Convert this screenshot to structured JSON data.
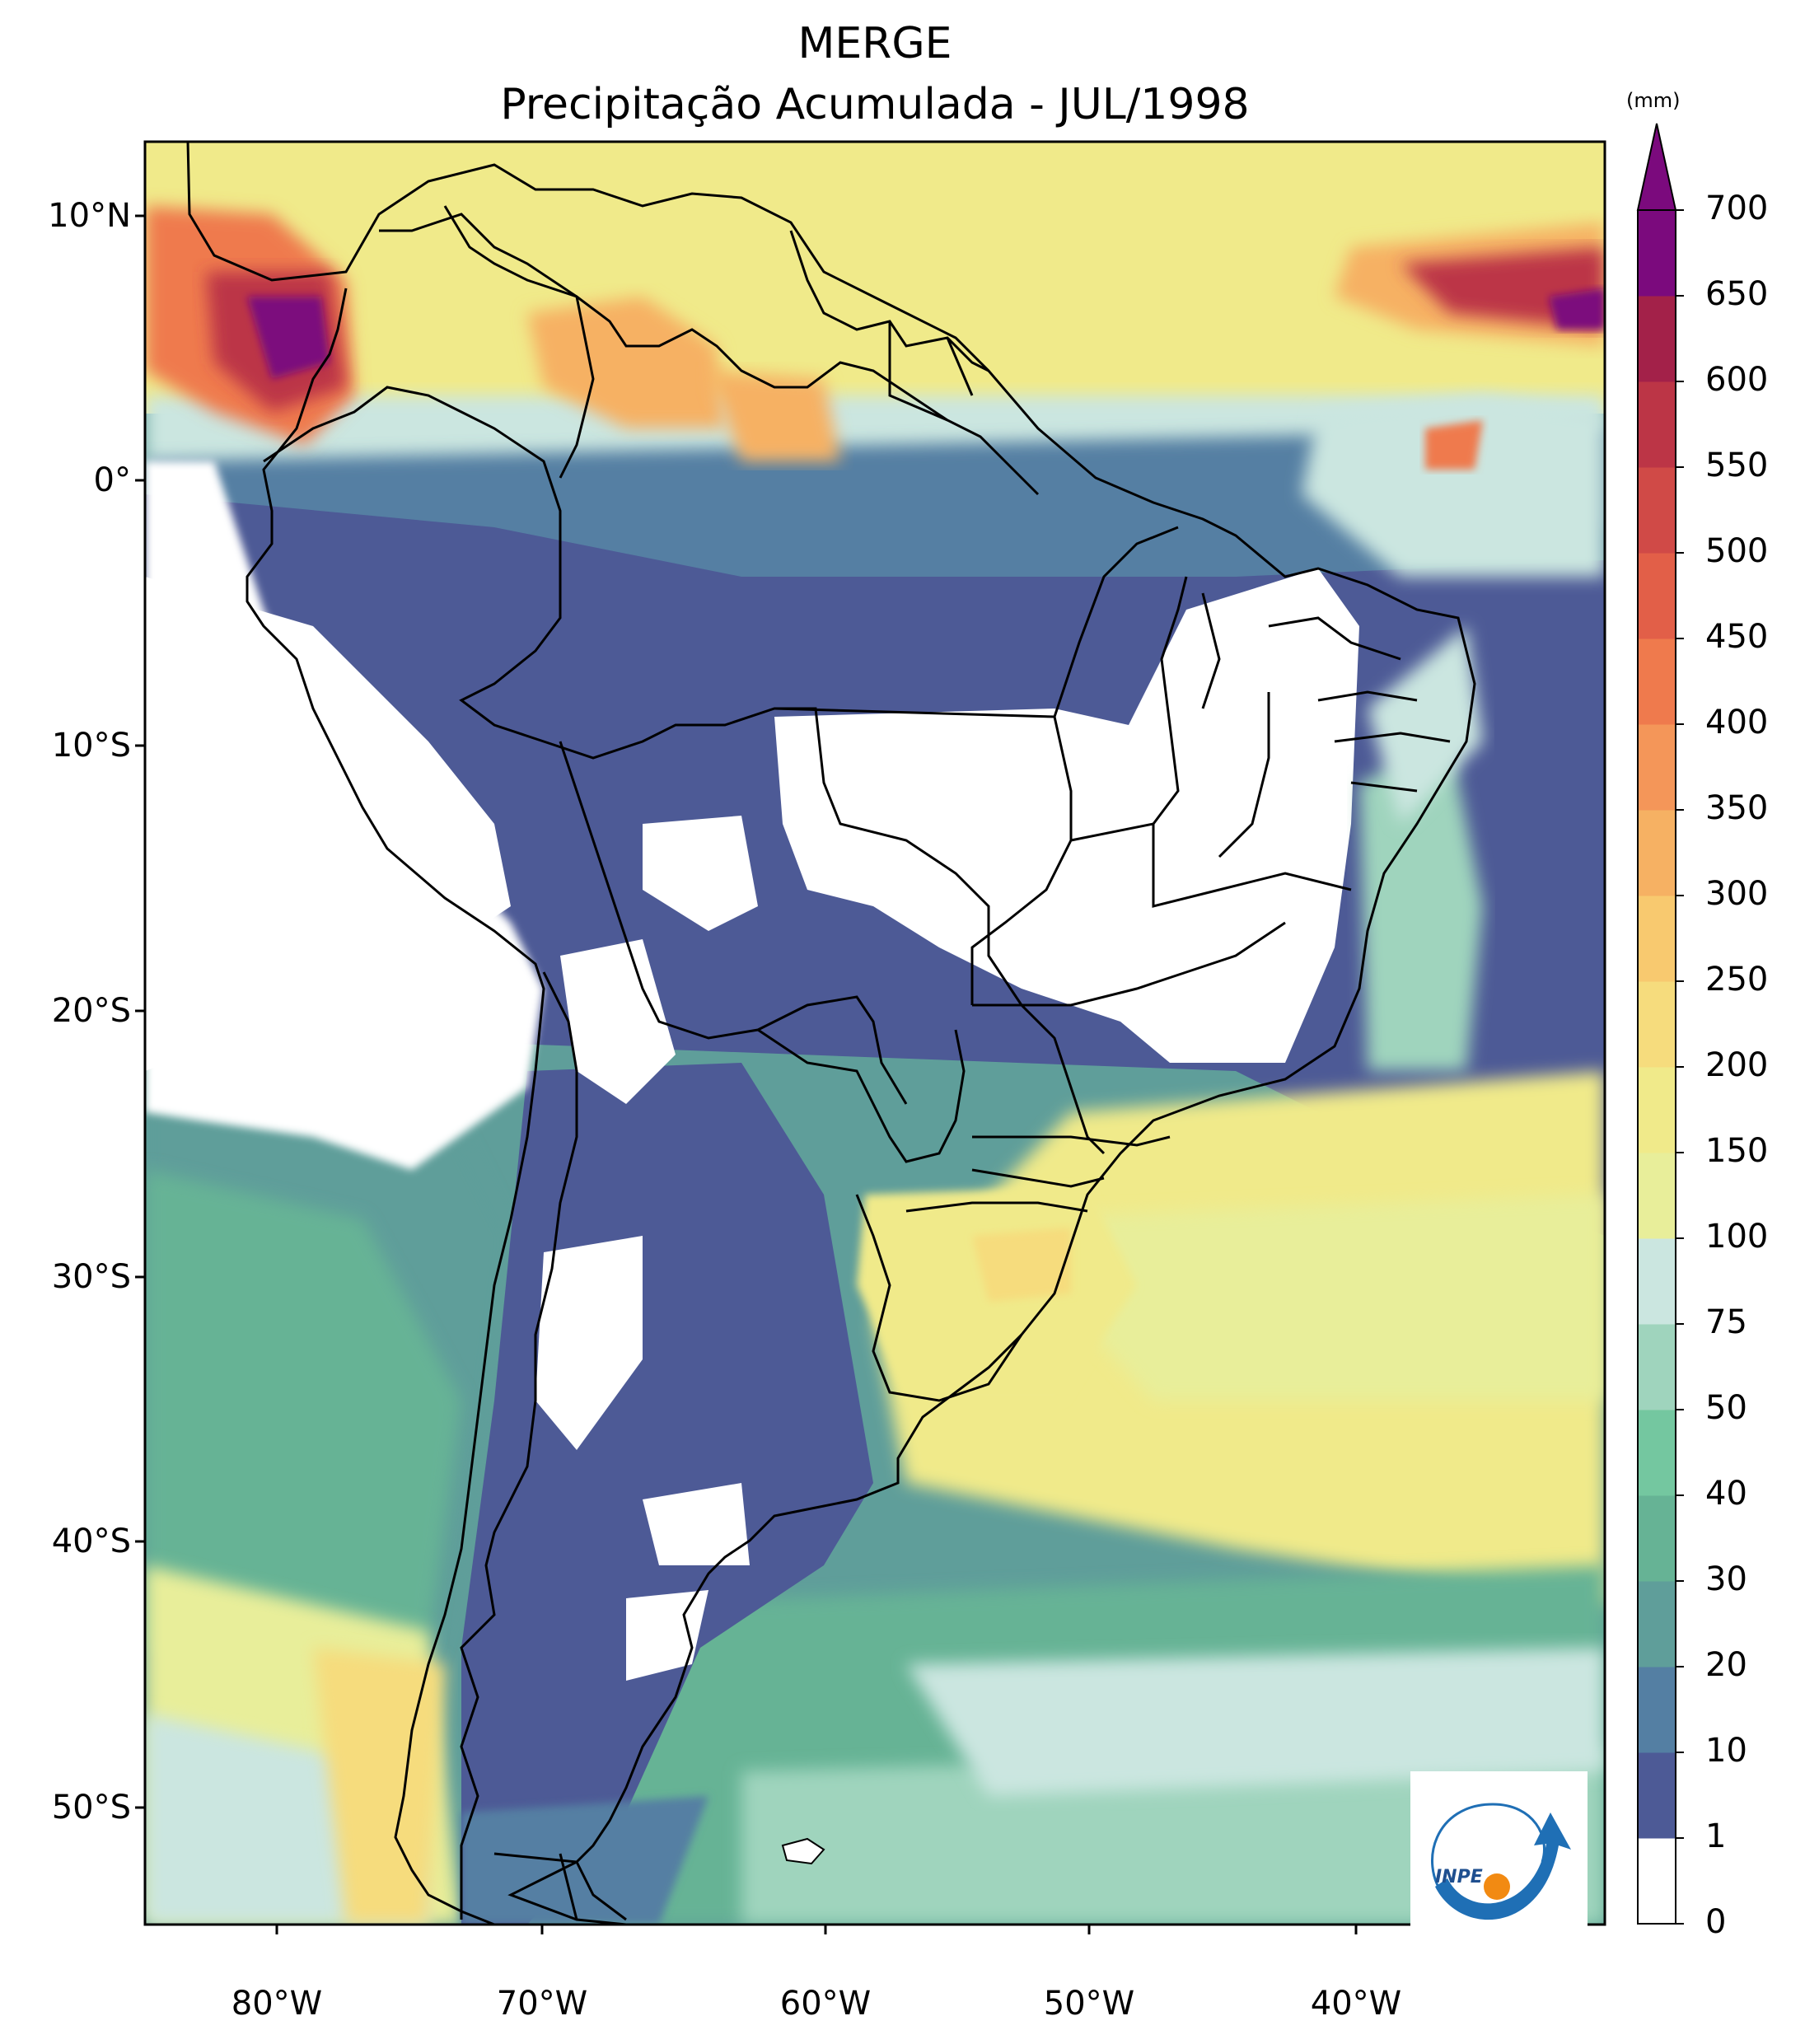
{
  "title": {
    "line1": "MERGE",
    "line2": "Precipitação Acumulada - JUL/1998"
  },
  "map": {
    "region": "South America",
    "variable": "Accumulated precipitation",
    "lat_ticks": [
      "10°N",
      "0°",
      "10°S",
      "20°S",
      "30°S",
      "40°S",
      "50°S"
    ],
    "lon_ticks": [
      "80°W",
      "70°W",
      "60°W",
      "50°W",
      "40°W"
    ],
    "lat_range": [
      -56,
      12.5
    ],
    "lon_range": [
      -85,
      -30
    ]
  },
  "colorbar": {
    "unit": "(mm)",
    "levels": [
      "0",
      "1",
      "10",
      "20",
      "30",
      "40",
      "50",
      "75",
      "100",
      "150",
      "200",
      "250",
      "300",
      "350",
      "400",
      "450",
      "500",
      "550",
      "600",
      "650",
      "700"
    ],
    "colors": [
      "#ffffff",
      "#4d5a96",
      "#547fa3",
      "#5f9e9a",
      "#66b395",
      "#74c7a0",
      "#9fd4bd",
      "#cbe6e0",
      "#e8ee9a",
      "#f0ea8a",
      "#f6dc7d",
      "#f8c96f",
      "#f6b163",
      "#f49659",
      "#ef7a4d",
      "#e25f48",
      "#d04a47",
      "#bc3546",
      "#a32149",
      "#7b0a7d"
    ],
    "extend": "max"
  },
  "logo": {
    "text": "INPE"
  }
}
